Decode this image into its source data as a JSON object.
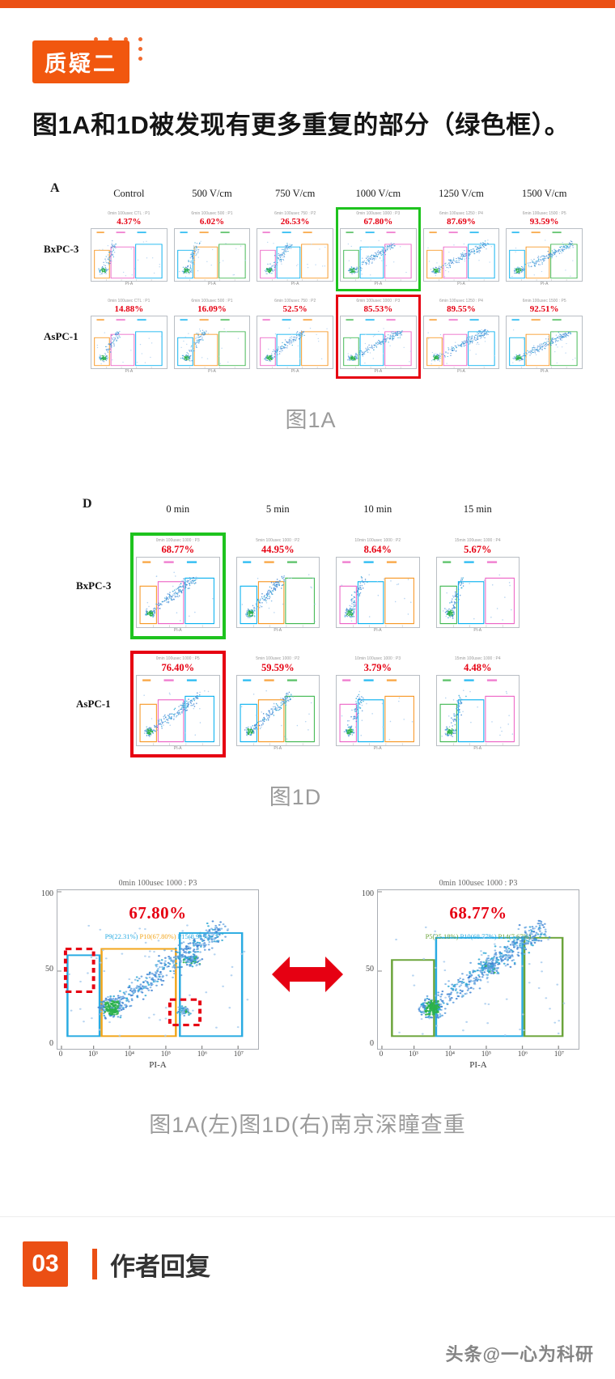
{
  "page": {
    "badge": "质疑二",
    "heading": "图1A和1D被发现有更多重复的部分（绿色框）。",
    "watermark": "头条@一心为科研",
    "accent_color": "#EB4F14",
    "percent_color": "#E60012",
    "highlight_green": "#1EC31E",
    "highlight_red": "#E60012"
  },
  "fig1a": {
    "panel_letter": "A",
    "caption": "图1A",
    "x_axis_label": "PI-A",
    "col_headers": [
      "Control",
      "500 V/cm",
      "750 V/cm",
      "1000 V/cm",
      "1250 V/cm",
      "1500 V/cm"
    ],
    "rows": [
      {
        "label": "BxPC-3",
        "cells": [
          {
            "head": "0min 100usec CTL : P1",
            "pct": "4.37%",
            "hl": null
          },
          {
            "head": "6min 100usec 500 : P1",
            "pct": "6.02%",
            "hl": null
          },
          {
            "head": "6min 100usec 750 : P2",
            "pct": "26.53%",
            "hl": null
          },
          {
            "head": "0min 100usec 1000 : P3",
            "pct": "67.80%",
            "hl": "green"
          },
          {
            "head": "6min 100usec 1250 : P4",
            "pct": "87.69%",
            "hl": null
          },
          {
            "head": "6min 100usec 1500 : P5",
            "pct": "93.59%",
            "hl": null
          }
        ]
      },
      {
        "label": "AsPC-1",
        "cells": [
          {
            "head": "0min 100usec CTL : P1",
            "pct": "14.88%",
            "hl": null
          },
          {
            "head": "6min 100usec 500 : P1",
            "pct": "16.09%",
            "hl": null
          },
          {
            "head": "6min 100usec 750 : P2",
            "pct": "52.5%",
            "hl": null
          },
          {
            "head": "6min 100usec 1000 : P3",
            "pct": "85.53%",
            "hl": "red"
          },
          {
            "head": "6min 100usec 1250 : P4",
            "pct": "89.55%",
            "hl": null
          },
          {
            "head": "6min 100usec 1500 : P5",
            "pct": "92.51%",
            "hl": null
          }
        ]
      }
    ]
  },
  "fig1d": {
    "panel_letter": "D",
    "caption": "图1D",
    "x_axis_label": "PI-A",
    "col_headers": [
      "0 min",
      "5 min",
      "10 min",
      "15 min"
    ],
    "rows": [
      {
        "label": "BxPC-3",
        "cells": [
          {
            "head": "0min 100usec 1000 : P3",
            "pct": "68.77%",
            "hl": "green"
          },
          {
            "head": "5min 100usec 1000 : P2",
            "pct": "44.95%",
            "hl": null
          },
          {
            "head": "10min 100usec 1000 : P2",
            "pct": "8.64%",
            "hl": null
          },
          {
            "head": "15min 100usec 1000 : P4",
            "pct": "5.67%",
            "hl": null
          }
        ]
      },
      {
        "label": "AsPC-1",
        "cells": [
          {
            "head": "0min 100usec 1000 : P5",
            "pct": "76.40%",
            "hl": "red"
          },
          {
            "head": "5min 100usec 1000 : P2",
            "pct": "59.59%",
            "hl": null
          },
          {
            "head": "10min 100usec 1000 : P3",
            "pct": "3.79%",
            "hl": null
          },
          {
            "head": "15min 100usec 1000 : P4",
            "pct": "4.48%",
            "hl": null
          }
        ]
      }
    ]
  },
  "comparison": {
    "caption": "图1A(左)图1D(右)南京深瞳查重",
    "left": {
      "title": "0min 100usec 1000 : P3",
      "pct": "67.80%",
      "gates": [
        {
          "label": "P9(22.31%)",
          "color": "#29ABE2"
        },
        {
          "label": "P10(67.80%)",
          "color": "#F2A51A"
        },
        {
          "label": "P15(8.91%)",
          "color": "#29ABE2"
        }
      ],
      "y_ticks": [
        "100",
        "50",
        "0"
      ],
      "x_ticks": [
        "0",
        "10³",
        "10⁴",
        "10⁵",
        "10⁶",
        "10⁷"
      ],
      "xlabel": "PI-A"
    },
    "right": {
      "title": "0min 100usec 1000 : P3",
      "pct": "68.77%",
      "gates": [
        {
          "label": "P5(25.18%)",
          "color": "#6BA43A"
        },
        {
          "label": "P10(68.77%)",
          "color": "#29ABE2"
        },
        {
          "label": "P14(7.67%)",
          "color": "#6BA43A"
        }
      ],
      "y_ticks": [
        "100",
        "50",
        "0"
      ],
      "x_ticks": [
        "0",
        "10³",
        "10⁴",
        "10⁵",
        "10⁶",
        "10⁷"
      ],
      "xlabel": "PI-A"
    }
  },
  "footer": {
    "number": "03",
    "title": "作者回复"
  }
}
